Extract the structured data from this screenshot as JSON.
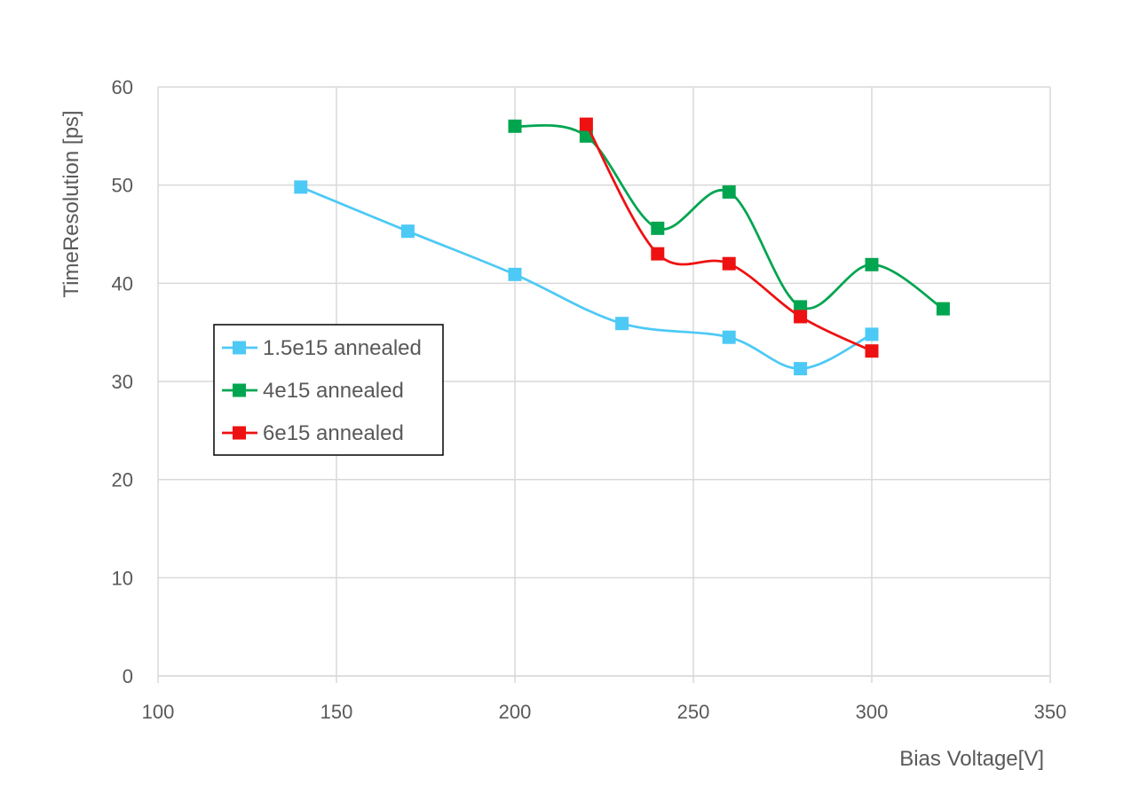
{
  "chart_data": {
    "type": "line",
    "smooth": true,
    "xlabel": "Bias Voltage[V]",
    "ylabel": "TimeResolution  [ps]",
    "xlim": [
      100,
      350
    ],
    "ylim": [
      0,
      60
    ],
    "x_ticks": [
      100,
      150,
      200,
      250,
      300,
      350
    ],
    "y_ticks": [
      0,
      10,
      20,
      30,
      40,
      50,
      60
    ],
    "grid": true,
    "legend_position": "left",
    "series": [
      {
        "name": "1.5e15 annealed",
        "color": "#4DC9F6",
        "marker": "square",
        "x": [
          140,
          170,
          200,
          230,
          260,
          280,
          300
        ],
        "y": [
          49.8,
          45.3,
          40.9,
          35.9,
          34.5,
          31.3,
          34.8
        ]
      },
      {
        "name": "4e15 annealed",
        "color": "#00A550",
        "marker": "square",
        "x": [
          200,
          220,
          240,
          260,
          280,
          300,
          320
        ],
        "y": [
          56.0,
          55.0,
          45.6,
          49.3,
          37.6,
          41.9,
          37.4
        ]
      },
      {
        "name": "6e15 annealed",
        "color": "#EE1111",
        "marker": "square",
        "x": [
          220,
          240,
          260,
          280,
          300
        ],
        "y": [
          56.2,
          43.0,
          42.0,
          36.6,
          33.1
        ]
      }
    ]
  }
}
